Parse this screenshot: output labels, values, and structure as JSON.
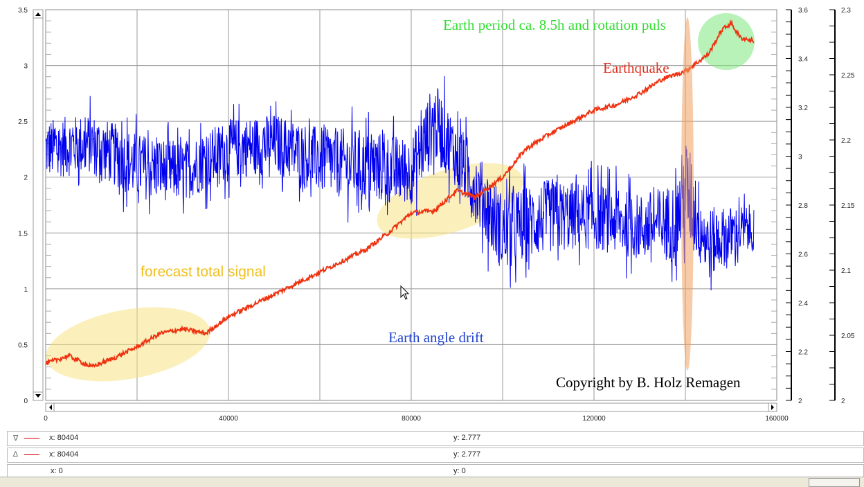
{
  "chart_data": {
    "type": "line",
    "title": "",
    "xlabel": "",
    "ylabel": "",
    "xlim": [
      0,
      160000
    ],
    "x_ticks": [
      "0",
      "40000",
      "80000",
      "120000",
      "160000"
    ],
    "y_left": {
      "ylim": [
        0,
        3.5
      ],
      "ticks": [
        "0",
        "0.5",
        "1",
        "1.5",
        "2",
        "2.5",
        "3",
        "3.5"
      ]
    },
    "y_right1": {
      "ylim": [
        2,
        3.6
      ],
      "ticks": [
        "2",
        "2.2",
        "2.4",
        "2.6",
        "2.8",
        "3",
        "3.2",
        "3.4",
        "3.6"
      ]
    },
    "y_right2": {
      "ylim": [
        2,
        2.3
      ],
      "ticks": [
        "2",
        "2.05",
        "2.1",
        "2.15",
        "2.2",
        "2.25",
        "2.3"
      ]
    },
    "grid": true,
    "series": [
      {
        "name": "Earth angle drift",
        "color": "#0000ee",
        "x": [
          0,
          10000,
          20000,
          30000,
          40000,
          50000,
          60000,
          70000,
          80000,
          85000,
          90000,
          95000,
          100000,
          110000,
          120000,
          130000,
          138000,
          140000,
          145000,
          150000,
          155000
        ],
        "mean": [
          2.25,
          2.3,
          2.1,
          2.05,
          2.25,
          2.3,
          2.15,
          2.1,
          2.05,
          2.5,
          2.2,
          1.85,
          1.5,
          1.65,
          1.65,
          1.55,
          1.6,
          1.9,
          1.4,
          1.5,
          1.55
        ],
        "amplitude": [
          0.45,
          0.45,
          0.5,
          0.45,
          0.45,
          0.45,
          0.5,
          0.55,
          0.5,
          0.6,
          0.5,
          0.55,
          0.6,
          0.55,
          0.5,
          0.5,
          0.6,
          0.8,
          0.55,
          0.4,
          0.35
        ]
      },
      {
        "name": "forecast total signal",
        "color": "#ee3311",
        "x": [
          0,
          5000,
          10000,
          15000,
          20000,
          25000,
          30000,
          35000,
          40000,
          50000,
          60000,
          70000,
          75000,
          80000,
          85000,
          90000,
          94000,
          100000,
          105000,
          110000,
          120000,
          125000,
          130000,
          135000,
          140000,
          145000,
          148000,
          150000,
          152000,
          155000
        ],
        "y": [
          0.33,
          0.4,
          0.3,
          0.38,
          0.48,
          0.6,
          0.64,
          0.6,
          0.75,
          0.95,
          1.15,
          1.35,
          1.5,
          1.68,
          1.7,
          1.88,
          1.82,
          2.0,
          2.25,
          2.38,
          2.6,
          2.65,
          2.75,
          2.88,
          2.95,
          3.1,
          3.32,
          3.38,
          3.25,
          3.22
        ]
      }
    ],
    "annotations": {
      "period": "Earth period ca. 8.5h and rotation puls",
      "earthquake": "Earthquake",
      "forecast": "forecast total signal",
      "drift": "Earth angle drift",
      "copyright": "Copyright by B. Holz Remagen"
    },
    "annotation_colors": {
      "period": "#33dd33",
      "earthquake": "#e03020",
      "forecast": "#f0c020",
      "drift": "#2244cc",
      "copyright": "#000000"
    }
  },
  "cursor_rows": [
    {
      "marker": "∇",
      "x": "x: 80404",
      "y": "y: 2.777"
    },
    {
      "marker": "∆",
      "x": "x: 80404",
      "y": "y: 2.777"
    },
    {
      "marker": "",
      "x": "x: 0",
      "y": "y: 0"
    }
  ]
}
